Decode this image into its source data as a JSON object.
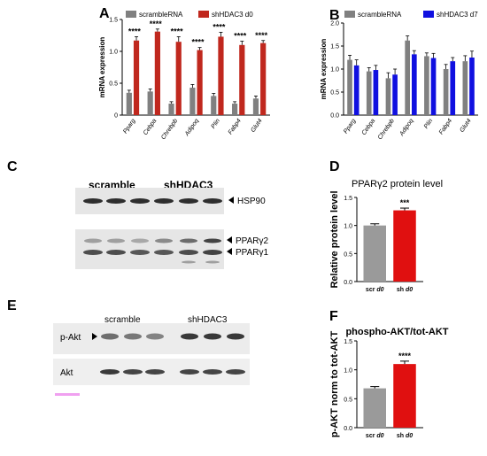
{
  "panels": {
    "A": "A",
    "B": "B",
    "C": "C",
    "D": "D",
    "E": "E",
    "F": "F"
  },
  "chart_data": [
    {
      "panel": "A",
      "type": "bar",
      "ylabel": "mRNA expression",
      "ylim": [
        0,
        1.5
      ],
      "yticks": [
        "0",
        "0.5",
        "1.0",
        "1.5"
      ],
      "categories": [
        "Pparg",
        "Cebpa",
        "Chrebpb",
        "Adipoq",
        "Plin",
        "Fabp4",
        "Glut4"
      ],
      "series": [
        {
          "name": "scrambleRNA",
          "color": "#808080",
          "values": [
            0.35,
            0.37,
            0.18,
            0.43,
            0.3,
            0.18,
            0.26
          ],
          "errors": [
            0.04,
            0.04,
            0.03,
            0.05,
            0.04,
            0.03,
            0.04
          ]
        },
        {
          "name": "shHDAC3 d0",
          "color": "#c0281e",
          "values": [
            1.17,
            1.31,
            1.15,
            1.02,
            1.23,
            1.1,
            1.13
          ],
          "errors": [
            0.06,
            0.04,
            0.08,
            0.04,
            0.07,
            0.06,
            0.04
          ]
        }
      ],
      "annotations": [
        "****",
        "****",
        "****",
        "****",
        "****",
        "****",
        "****"
      ]
    },
    {
      "panel": "B",
      "type": "bar",
      "ylabel": "mRNA expression",
      "ylim": [
        0,
        2.0
      ],
      "yticks": [
        "0.0",
        "0.5",
        "1.0",
        "1.5",
        "2.0"
      ],
      "categories": [
        "Pparg",
        "Cebpa",
        "Chrebpb",
        "Adipoq",
        "Plin",
        "Fabp4",
        "Glut4"
      ],
      "series": [
        {
          "name": "scrambleRNA",
          "color": "#808080",
          "values": [
            1.2,
            0.95,
            0.8,
            1.62,
            1.28,
            1.0,
            1.17
          ],
          "errors": [
            0.1,
            0.08,
            0.12,
            0.1,
            0.07,
            0.1,
            0.12
          ]
        },
        {
          "name": "shHDAC3 d7",
          "color": "#1010e0",
          "values": [
            1.08,
            0.98,
            0.88,
            1.32,
            1.24,
            1.17,
            1.25
          ],
          "errors": [
            0.12,
            0.1,
            0.12,
            0.08,
            0.1,
            0.08,
            0.14
          ]
        }
      ]
    },
    {
      "panel": "D",
      "type": "bar",
      "title": "PPARγ2 protein level",
      "ylabel": "Relative protein level",
      "ylim": [
        0,
        1.5
      ],
      "yticks": [
        "0.0",
        "0.5",
        "1.0",
        "1.5"
      ],
      "categories": [
        "scr d0",
        "sh d0"
      ],
      "cat_prefix": [
        "scr",
        "sh"
      ],
      "cat_suffix": [
        "d0",
        "d0"
      ],
      "values": [
        1.0,
        1.27
      ],
      "errors": [
        0.03,
        0.04
      ],
      "colors": [
        "#9a9a9a",
        "#e01010"
      ],
      "annotation": "***"
    },
    {
      "panel": "F",
      "type": "bar",
      "title": "phospho-AKT/tot-AKT",
      "ylabel": "p-AKT norm to tot-AKT",
      "ylim": [
        0,
        1.5
      ],
      "yticks": [
        "0.0",
        "0.5",
        "1.0",
        "1.5"
      ],
      "categories": [
        "scr d0",
        "sh d0"
      ],
      "cat_prefix": [
        "scr",
        "sh"
      ],
      "cat_suffix": [
        "d0",
        "d0"
      ],
      "values": [
        0.68,
        1.1
      ],
      "errors": [
        0.03,
        0.05
      ],
      "colors": [
        "#9a9a9a",
        "#e01010"
      ],
      "annotation": "****"
    }
  ],
  "blots": {
    "C": {
      "groups": [
        "scramble",
        "shHDAC3"
      ],
      "labels": [
        "HSP90",
        "PPARγ2",
        "PPARγ1"
      ]
    },
    "E": {
      "groups": [
        "scramble",
        "shHDAC3"
      ],
      "labels": [
        "p-Akt",
        "Akt"
      ]
    }
  }
}
